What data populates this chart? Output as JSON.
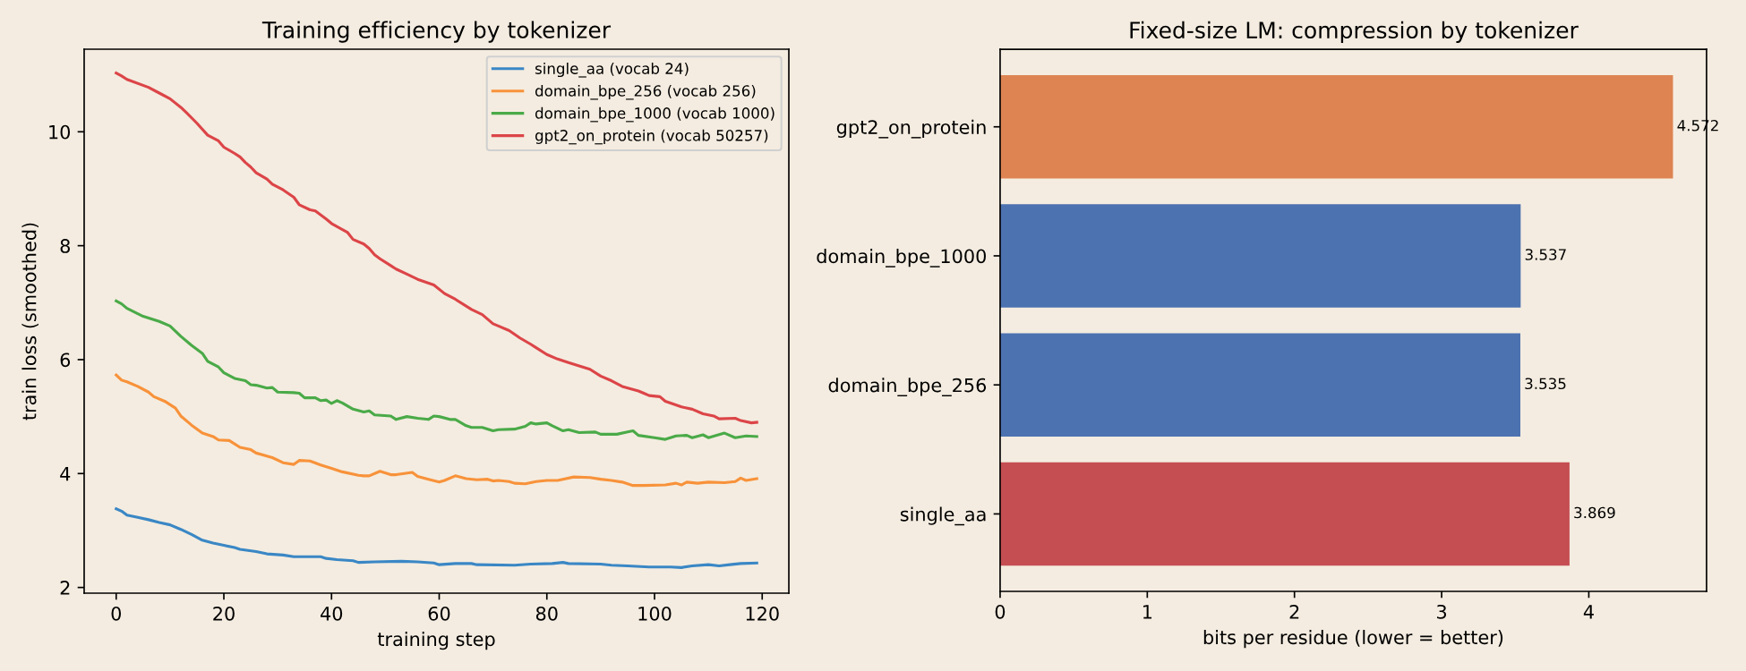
{
  "chart_data": [
    {
      "type": "line",
      "title": "Training efficiency by tokenizer",
      "xlabel": "training step",
      "ylabel": "train loss (smoothed)",
      "xlim": [
        -5.95,
        124.95
      ],
      "xticks": [
        0,
        20,
        40,
        60,
        80,
        100,
        120
      ],
      "ylim": [
        1.9,
        11.45
      ],
      "yticks": [
        2,
        4,
        6,
        8,
        10
      ],
      "legend": "top right",
      "series": [
        {
          "name": "single_aa (vocab 24)",
          "color": "#3a87c5",
          "x": [
            0,
            1,
            2,
            4,
            6,
            8,
            10,
            12,
            14,
            16,
            18,
            20,
            22,
            23,
            26,
            28,
            31,
            33,
            36,
            38,
            39,
            41,
            44,
            45,
            48,
            53,
            56,
            59,
            60,
            63,
            66,
            67,
            74,
            77,
            81,
            83,
            84,
            90,
            92,
            95,
            99,
            103,
            105,
            107,
            110,
            112,
            114,
            116,
            119
          ],
          "values": [
            3.38,
            3.34,
            3.27,
            3.23,
            3.19,
            3.14,
            3.1,
            3.02,
            2.93,
            2.83,
            2.78,
            2.74,
            2.7,
            2.67,
            2.63,
            2.59,
            2.57,
            2.54,
            2.54,
            2.54,
            2.51,
            2.49,
            2.47,
            2.44,
            2.45,
            2.46,
            2.45,
            2.43,
            2.4,
            2.42,
            2.42,
            2.4,
            2.39,
            2.41,
            2.42,
            2.44,
            2.42,
            2.41,
            2.39,
            2.38,
            2.36,
            2.36,
            2.35,
            2.38,
            2.4,
            2.38,
            2.4,
            2.42,
            2.43
          ]
        },
        {
          "name": "domain_bpe_256 (vocab 256)",
          "color": "#f8923a",
          "x": [
            0,
            1,
            2,
            4,
            6,
            7,
            9,
            11,
            12,
            14,
            16,
            18,
            19,
            21,
            23,
            25,
            26,
            29,
            31,
            33,
            34,
            36,
            38,
            40,
            42,
            45,
            46,
            47,
            49,
            51,
            52,
            55,
            56,
            58,
            60,
            61,
            63,
            65,
            67,
            69,
            70,
            71,
            73,
            74,
            76,
            78,
            80,
            82,
            85,
            88,
            90,
            92,
            94,
            96,
            98,
            102,
            104,
            105,
            106,
            108,
            110,
            113,
            115,
            116,
            117,
            119
          ],
          "values": [
            5.73,
            5.64,
            5.61,
            5.53,
            5.43,
            5.35,
            5.27,
            5.15,
            5.01,
            4.85,
            4.71,
            4.65,
            4.59,
            4.58,
            4.46,
            4.42,
            4.36,
            4.28,
            4.19,
            4.16,
            4.23,
            4.22,
            4.15,
            4.09,
            4.03,
            3.97,
            3.96,
            3.96,
            4.04,
            3.98,
            3.98,
            4.02,
            3.95,
            3.9,
            3.85,
            3.88,
            3.96,
            3.91,
            3.89,
            3.9,
            3.87,
            3.88,
            3.86,
            3.83,
            3.82,
            3.86,
            3.88,
            3.88,
            3.94,
            3.93,
            3.9,
            3.88,
            3.85,
            3.79,
            3.79,
            3.8,
            3.83,
            3.8,
            3.85,
            3.83,
            3.85,
            3.84,
            3.86,
            3.92,
            3.88,
            3.91
          ]
        },
        {
          "name": "domain_bpe_1000 (vocab 1000)",
          "color": "#4aaa48",
          "x": [
            0,
            1,
            2,
            5,
            8,
            10,
            12,
            14,
            16,
            17,
            19,
            20,
            22,
            24,
            25,
            26,
            28,
            29,
            30,
            33,
            34,
            35,
            37,
            38,
            39,
            40,
            41,
            42,
            44,
            46,
            47,
            48,
            51,
            52,
            54,
            56,
            58,
            59,
            60,
            62,
            63,
            65,
            66,
            68,
            70,
            71,
            74,
            76,
            77,
            78,
            80,
            81,
            83,
            84,
            86,
            89,
            90,
            93,
            95,
            96,
            97,
            100,
            102,
            104,
            106,
            107,
            109,
            110,
            113,
            115,
            117,
            119
          ],
          "values": [
            7.03,
            6.98,
            6.9,
            6.76,
            6.67,
            6.59,
            6.41,
            6.25,
            6.11,
            5.97,
            5.87,
            5.77,
            5.67,
            5.63,
            5.56,
            5.55,
            5.5,
            5.51,
            5.43,
            5.42,
            5.41,
            5.33,
            5.33,
            5.28,
            5.29,
            5.23,
            5.28,
            5.24,
            5.13,
            5.08,
            5.1,
            5.03,
            5.01,
            4.95,
            5.0,
            4.97,
            4.95,
            5.01,
            5.0,
            4.95,
            4.95,
            4.84,
            4.81,
            4.81,
            4.75,
            4.77,
            4.78,
            4.83,
            4.89,
            4.87,
            4.89,
            4.84,
            4.75,
            4.77,
            4.72,
            4.73,
            4.69,
            4.69,
            4.73,
            4.75,
            4.67,
            4.63,
            4.6,
            4.66,
            4.67,
            4.63,
            4.68,
            4.63,
            4.71,
            4.63,
            4.66,
            4.65
          ]
        },
        {
          "name": "gpt2_on_protein (vocab 50257)",
          "color": "#dc4548",
          "x": [
            0,
            1,
            2,
            6,
            8,
            10,
            12,
            13,
            15,
            17,
            19,
            20,
            22,
            23,
            24,
            25,
            26,
            28,
            29,
            31,
            33,
            34,
            36,
            37,
            39,
            40,
            43,
            44,
            46,
            47,
            48,
            49,
            51,
            52,
            54,
            56,
            59,
            61,
            63,
            66,
            68,
            70,
            71,
            73,
            75,
            77,
            78,
            80,
            82,
            84,
            86,
            88,
            90,
            92,
            94,
            97,
            98,
            99,
            101,
            102,
            105,
            107,
            109,
            111,
            112,
            115,
            116,
            118,
            119
          ],
          "values": [
            11.03,
            10.98,
            10.92,
            10.78,
            10.68,
            10.58,
            10.43,
            10.34,
            10.15,
            9.94,
            9.84,
            9.73,
            9.62,
            9.56,
            9.46,
            9.38,
            9.28,
            9.17,
            9.08,
            8.98,
            8.85,
            8.72,
            8.63,
            8.61,
            8.47,
            8.39,
            8.23,
            8.11,
            8.03,
            7.95,
            7.84,
            7.77,
            7.65,
            7.59,
            7.5,
            7.41,
            7.31,
            7.16,
            7.06,
            6.88,
            6.79,
            6.63,
            6.59,
            6.51,
            6.38,
            6.27,
            6.21,
            6.09,
            6.01,
            5.95,
            5.89,
            5.83,
            5.71,
            5.63,
            5.53,
            5.45,
            5.41,
            5.37,
            5.35,
            5.27,
            5.17,
            5.13,
            5.05,
            5.01,
            4.96,
            4.97,
            4.93,
            4.89,
            4.9
          ]
        }
      ]
    },
    {
      "type": "bar",
      "orientation": "horizontal",
      "title": "Fixed-size LM: compression by tokenizer",
      "xlabel": "bits per residue (lower = better)",
      "categories": [
        "gpt2_on_protein",
        "domain_bpe_1000",
        "domain_bpe_256",
        "single_aa"
      ],
      "values": [
        4.572,
        3.537,
        3.535,
        3.869
      ],
      "colors": [
        "#dd8452",
        "#4c72b0",
        "#4c72b0",
        "#c44e52"
      ],
      "xlim": [
        0,
        4.8
      ],
      "xticks": [
        0,
        1,
        2,
        3,
        4
      ],
      "data_labels": true
    }
  ]
}
